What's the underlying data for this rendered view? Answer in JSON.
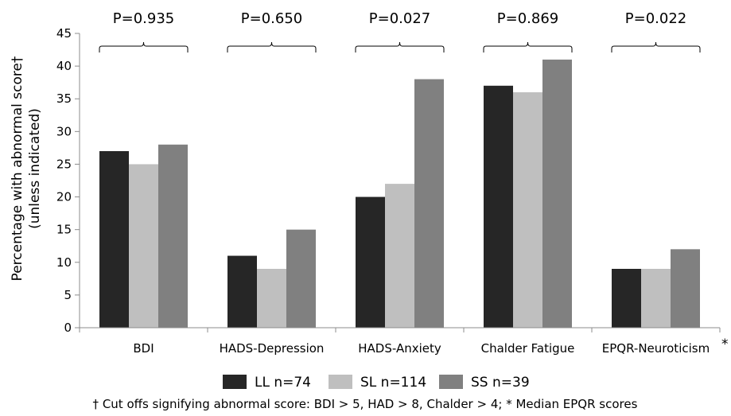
{
  "chart_data": {
    "type": "bar",
    "categories": [
      "BDI",
      "HADS-Depression",
      "HADS-Anxiety",
      "Chalder Fatigue",
      "EPQR-Neuroticism"
    ],
    "series": [
      {
        "name": "LL n=74",
        "color": "#262626",
        "values": [
          27,
          11,
          20,
          37,
          9
        ]
      },
      {
        "name": "SL n=114",
        "color": "#bfbfbf",
        "values": [
          25,
          9,
          22,
          36,
          9
        ]
      },
      {
        "name": "SS n=39",
        "color": "#808080",
        "values": [
          28,
          15,
          38,
          41,
          12
        ]
      }
    ],
    "p_values": [
      "P=0.935",
      "P=0.650",
      "P=0.027",
      "P=0.869",
      "P=0.022"
    ],
    "ylabel_line1": "Percentage with abnormal score†",
    "ylabel_line2": "(unless indicated)",
    "ylim": [
      0,
      45
    ],
    "yticks": [
      0,
      5,
      10,
      15,
      20,
      25,
      30,
      35,
      40,
      45
    ],
    "asterisk_note": "*",
    "footnote": "† Cut offs signifying abnormal score: BDI > 5, HAD > 8, Chalder > 4; * Median EPQR scores",
    "legend_position": "bottom",
    "grid": false
  }
}
